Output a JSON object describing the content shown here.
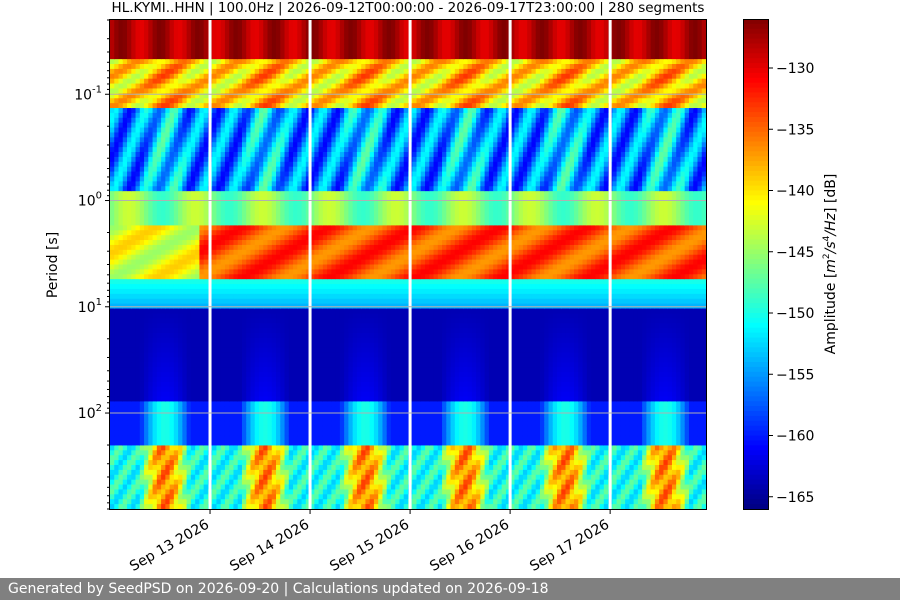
{
  "chart_data": {
    "type": "heatmap",
    "title": "HL.KYMI..HHN | 100.0Hz | 2026-09-12T00:00:00 - 2026-09-17T23:00:00 | 280 segments",
    "xlabel": "",
    "ylabel": "Period [s]",
    "x_range": [
      "2026-09-12T00:00:00",
      "2026-09-17T23:00:00"
    ],
    "x_ticks": [
      "2026-09-13",
      "2026-09-14",
      "2026-09-15",
      "2026-09-16",
      "2026-09-17"
    ],
    "x_tick_labels": [
      "Sep 13 2026",
      "Sep 14 2026",
      "Sep 15 2026",
      "Sep 16 2026",
      "Sep 17 2026"
    ],
    "y_scale": "log",
    "y_inverted": true,
    "y_range_s": [
      0.02,
      800
    ],
    "y_ticks_s": [
      0.1,
      1,
      10,
      100
    ],
    "y_tick_labels": [
      "10^-1",
      "10^0",
      "10^1",
      "10^2"
    ],
    "colorbar": {
      "label": "Amplitude [m^2/s^4/Hz] [dB]",
      "colormap": "jet",
      "range_db": [
        -166,
        -126
      ],
      "ticks": [
        -130,
        -135,
        -140,
        -145,
        -150,
        -155,
        -160,
        -165
      ]
    },
    "grid": true,
    "gaps": [
      "2026-09-13",
      "2026-09-14",
      "2026-09-15",
      "2026-09-16",
      "2026-09-17"
    ],
    "spectral_bands": [
      {
        "period_range_s": [
          0.02,
          0.05
        ],
        "amplitude_db": -128
      },
      {
        "period_range_s": [
          0.05,
          0.15
        ],
        "amplitude_db": -140
      },
      {
        "period_range_s": [
          0.2,
          0.6
        ],
        "amplitude_db": -158
      },
      {
        "period_range_s": [
          1.5,
          5
        ],
        "amplitude_db": -133
      },
      {
        "period_range_s": [
          10,
          60
        ],
        "amplitude_db": -164
      },
      {
        "period_range_s": [
          150,
          800
        ],
        "amplitude_db": -145
      }
    ]
  },
  "footer": {
    "text": "Generated by SeedPSD on 2026-09-20 | Calculations updated on 2026-09-18"
  }
}
